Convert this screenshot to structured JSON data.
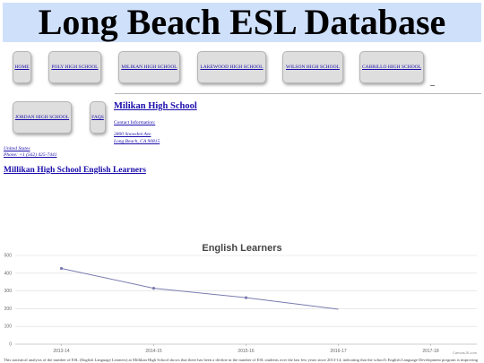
{
  "header": {
    "title": "Long Beach ESL Database"
  },
  "nav": {
    "home": "HOME",
    "poly": "POLY HIGH SCHOOL",
    "millikan": "MILIKAN HIGH SCHOOL",
    "lakewood": "LAKEWOOD HIGH SCHOOL",
    "wilson": "WILSON HIGH SCHOOL",
    "cabrillo": "CABRILLO HIGH SCHOOL",
    "jordan": "JORDAN HIGH SCHOOL",
    "faqs": "FAQS"
  },
  "school": {
    "name": "Milikan High School",
    "contact_label": "Contact Information:",
    "address_line1": "2800 Snowden Ave",
    "address_line2": "Long Beach, CA 90815",
    "country": "United States",
    "phone": "Phone: +1 (562) 425-7441",
    "section_link": "Millikan High School English Learners"
  },
  "chart_data": {
    "type": "line",
    "title": "English Learners",
    "categories": [
      "2013-14",
      "2014-15",
      "2015-16",
      "2016-17",
      "2017-18"
    ],
    "values": [
      427,
      315,
      262,
      197,
      null
    ],
    "ylim": [
      0,
      500
    ],
    "yticks": [
      0,
      100,
      200,
      300,
      400,
      500
    ],
    "grid": true,
    "color": "#7b7bb0",
    "credit": "CanvasJS.com"
  },
  "footer": {
    "text": "This statistical analysis of the number of ESL (English Language Learners) at Millikan High School shows that there has been a decline in the number of ESL students over the last few years since 2013-14, indicating that the school's English Language Development program is improving"
  }
}
